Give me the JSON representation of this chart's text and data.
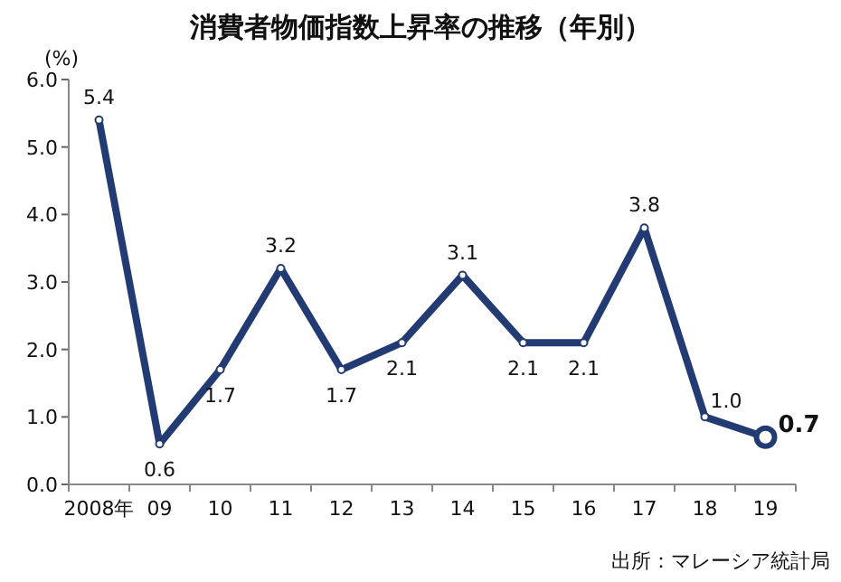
{
  "chart_data": {
    "type": "line",
    "title": "消費者物価指数上昇率の推移（年別）",
    "ylabel": "(%)",
    "categories": [
      "2008年",
      "09",
      "10",
      "11",
      "12",
      "13",
      "14",
      "15",
      "16",
      "17",
      "18",
      "19"
    ],
    "series": [
      {
        "color": "#233b73",
        "values": [
          5.4,
          0.6,
          1.7,
          3.2,
          1.7,
          2.1,
          3.1,
          2.1,
          2.1,
          3.8,
          1.0,
          0.7
        ]
      }
    ],
    "ylim": [
      0,
      6
    ],
    "yticks": [
      {
        "value": 0,
        "label": "0.0"
      },
      {
        "value": 1,
        "label": "1.0"
      },
      {
        "value": 2,
        "label": "2.0"
      },
      {
        "value": 3,
        "label": "3.0"
      },
      {
        "value": 4,
        "label": "4.0"
      },
      {
        "value": 5,
        "label": "5.0"
      },
      {
        "value": 6,
        "label": "6.0"
      }
    ],
    "value_labels": [
      "5.4",
      "0.6",
      "1.7",
      "3.2",
      "1.7",
      "2.1",
      "3.1",
      "2.1",
      "2.1",
      "3.8",
      "1.0",
      "0.7"
    ],
    "marker": "circle",
    "line_style": "solid",
    "grid": false,
    "annotations": [
      "出所：マレーシア統計局"
    ]
  }
}
